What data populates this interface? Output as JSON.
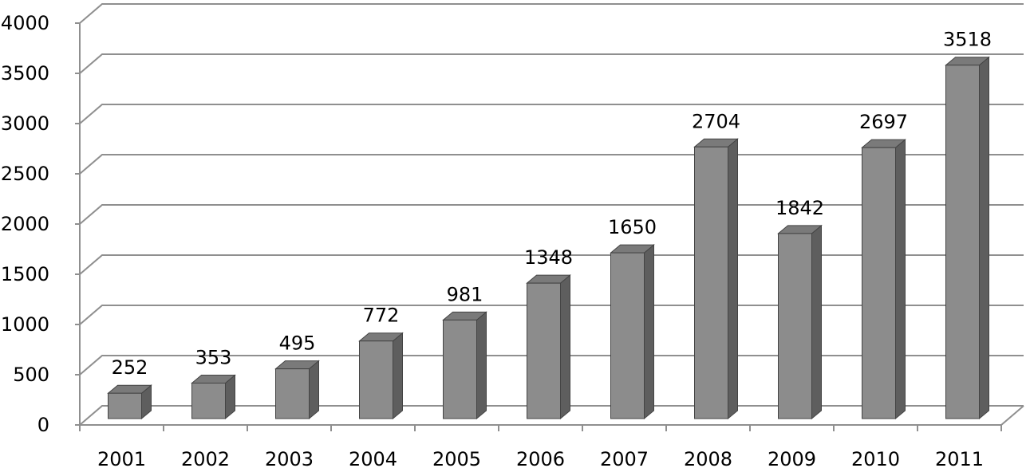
{
  "chart_data": {
    "type": "bar",
    "title": "",
    "xlabel": "",
    "ylabel": "",
    "categories": [
      "2001",
      "2002",
      "2003",
      "2004",
      "2005",
      "2006",
      "2007",
      "2008",
      "2009",
      "2010",
      "2011"
    ],
    "values": [
      252,
      353,
      495,
      772,
      981,
      1348,
      1650,
      2704,
      1842,
      2697,
      3518
    ],
    "data_labels": [
      "252",
      "353",
      "495",
      "772",
      "981",
      "1348",
      "1650",
      "2704",
      "1842",
      "2697",
      "3518"
    ],
    "ylim": [
      0,
      4000
    ],
    "yticks": [
      0,
      500,
      1000,
      1500,
      2000,
      2500,
      3000,
      3500,
      4000
    ],
    "ytick_labels": [
      "0",
      "500",
      "1000",
      "1500",
      "2000",
      "2500",
      "3000",
      "3500",
      "4000"
    ],
    "grid": true,
    "legend": "none",
    "style": "3d-column",
    "colors": {
      "bar_front": "#8c8c8c",
      "bar_top": "#7a7a7a",
      "bar_side": "#5e5e5e",
      "grid": "#8f8f8f",
      "axis": "#8f8f8f"
    }
  }
}
